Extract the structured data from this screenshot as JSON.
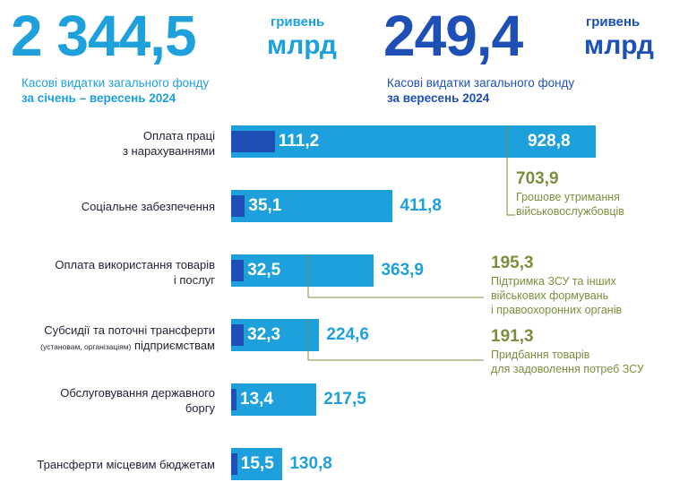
{
  "colors": {
    "total_bar": "#1da0dc",
    "month_bar": "#1e4fb4",
    "total_text": "#1da0dc",
    "month_text": "#1e4fb4",
    "annotation": "#7a8f3e",
    "category_text": "#1f2233"
  },
  "header": {
    "ytd": {
      "value": "2 344,5",
      "unit_top": "гривень",
      "unit_bottom": "млрд",
      "caption_line1": "Касові видатки загального фонду",
      "caption_line2": "за січень – вересень 2024"
    },
    "month": {
      "value": "249,4",
      "unit_top": "гривень",
      "unit_bottom": "млрд",
      "caption_line1": "Касові видатки загального фонду",
      "caption_line2": "за вересень 2024"
    }
  },
  "categories": [
    {
      "line1": "Оплата праці",
      "line2": "з нарахуваннями",
      "small": ""
    },
    {
      "line1": "Соціальне забезпечення",
      "line2": "",
      "small": ""
    },
    {
      "line1": "Оплата використання товарів",
      "line2": "і послуг",
      "small": ""
    },
    {
      "line1": "Субсидії та поточні трансферти",
      "line2": "підприємствам",
      "small": "(установам, організаціям)"
    },
    {
      "line1": "Обслуговування державного",
      "line2": "боргу",
      "small": ""
    },
    {
      "line1": "Трансферти місцевим бюджетам",
      "line2": "",
      "small": ""
    }
  ],
  "annotations": [
    {
      "value": "703,9",
      "line1": "Грошове утримання",
      "line2": "військовослужбовців",
      "line3": ""
    },
    {
      "value": "195,3",
      "line1": "Підтримка ЗСУ та інших",
      "line2": "військових формувань",
      "line3": "і правоохоронних органів"
    },
    {
      "value": "191,3",
      "line1": "Придбання товарів",
      "line2": "для задоволення потреб ЗСУ",
      "line3": ""
    }
  ],
  "chart_data": {
    "type": "bar",
    "orientation": "horizontal",
    "categories": [
      "Оплата праці з нарахуваннями",
      "Соціальне забезпечення",
      "Оплата використання товарів і послуг",
      "Субсидії та поточні трансферти підприємствам (установам, організаціям)",
      "Обслуговування державного боргу",
      "Трансферти місцевим бюджетам"
    ],
    "series": [
      {
        "values": [
          928.8,
          411.8,
          363.9,
          224.6,
          217.5,
          130.8
        ],
        "labels": [
          "928,8",
          "411,8",
          "363,9",
          "224,6",
          "217,5",
          "130,8"
        ]
      },
      {
        "values": [
          111.2,
          35.1,
          32.5,
          32.3,
          13.4,
          15.5
        ],
        "labels": [
          "111,2",
          "35,1",
          "32,5",
          "32,3",
          "13,4",
          "15,5"
        ]
      }
    ]
  }
}
